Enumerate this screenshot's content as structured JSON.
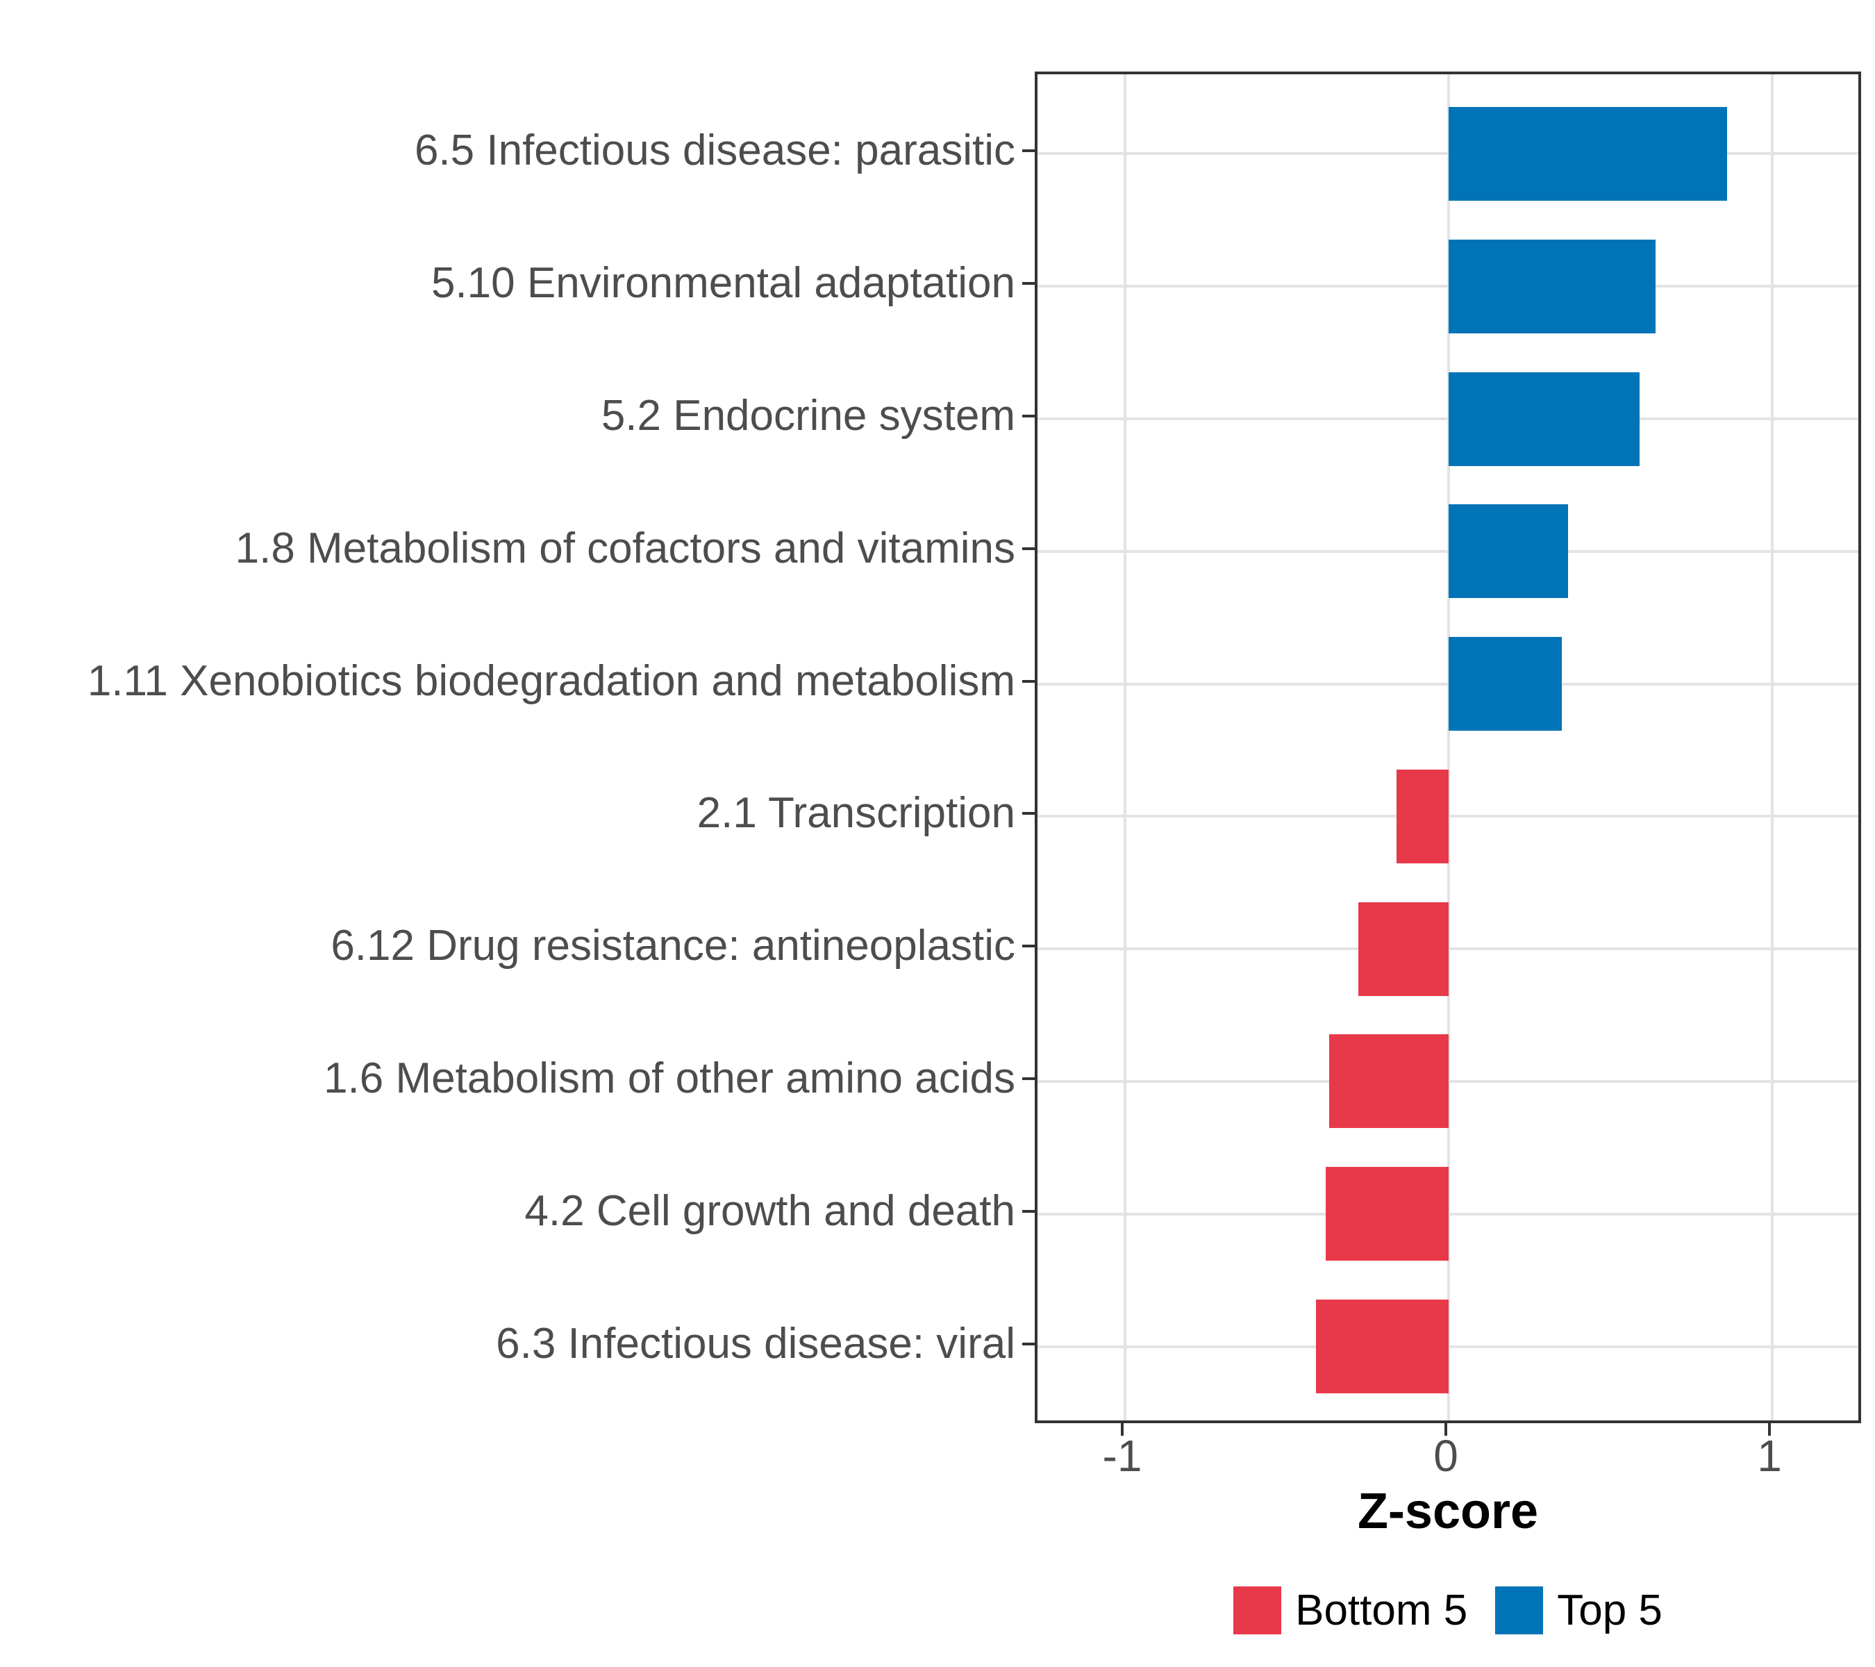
{
  "style": {
    "background": "#ffffff",
    "bar_blue": "#0074B6",
    "bar_red": "#E8394A",
    "grid_color": "#E3E3E3",
    "panel_border_color": "#333333",
    "axis_text_color": "#4D4D4D",
    "axis_title_color": "#000000"
  },
  "chart_data": {
    "type": "bar",
    "orientation": "horizontal",
    "title": "",
    "xlabel": "Z-score",
    "ylabel": "",
    "xlim": [
      -1.27,
      1.28
    ],
    "x_ticks": [
      {
        "value": -1,
        "label": "-1"
      },
      {
        "value": 0,
        "label": "0"
      },
      {
        "value": 1,
        "label": "1"
      }
    ],
    "grid": true,
    "legend_position": "bottom",
    "bars": [
      {
        "label": "6.5 Infectious disease: parasitic",
        "value": 0.86,
        "group": "Top 5"
      },
      {
        "label": "5.10 Environmental adaptation",
        "value": 0.64,
        "group": "Top 5"
      },
      {
        "label": "5.2 Endocrine system",
        "value": 0.59,
        "group": "Top 5"
      },
      {
        "label": "1.8 Metabolism of cofactors and vitamins",
        "value": 0.37,
        "group": "Top 5"
      },
      {
        "label": "1.11 Xenobiotics biodegradation and metabolism",
        "value": 0.35,
        "group": "Top 5"
      },
      {
        "label": "2.1 Transcription",
        "value": -0.16,
        "group": "Bottom 5"
      },
      {
        "label": "6.12 Drug resistance: antineoplastic",
        "value": -0.28,
        "group": "Bottom 5"
      },
      {
        "label": "1.6 Metabolism of other amino acids",
        "value": -0.37,
        "group": "Bottom 5"
      },
      {
        "label": "4.2 Cell growth and death",
        "value": -0.38,
        "group": "Bottom 5"
      },
      {
        "label": "6.3 Infectious disease: viral",
        "value": -0.41,
        "group": "Bottom 5"
      }
    ],
    "legend": [
      {
        "label": "Bottom 5",
        "color": "#E8394A"
      },
      {
        "label": "Top 5",
        "color": "#0074B6"
      }
    ]
  }
}
